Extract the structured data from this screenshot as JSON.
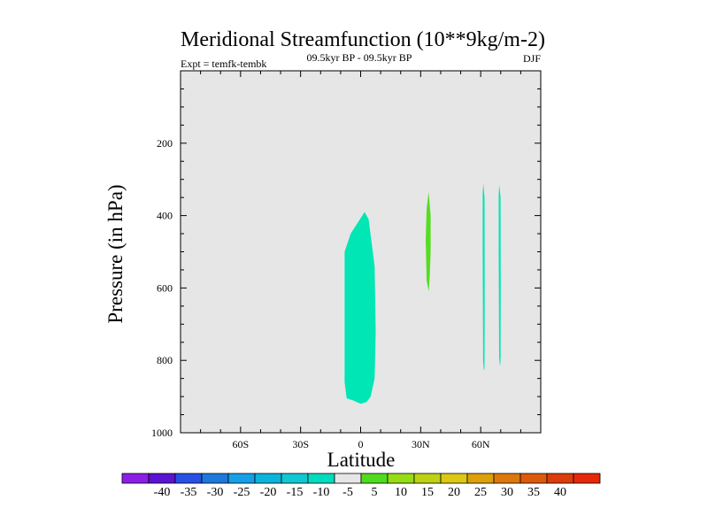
{
  "chart_data": {
    "type": "contour",
    "title": "Meridional Streamfunction (10**9kg/m-2)",
    "subtitle": "09.5kyr BP - 09.5kyr BP",
    "left_label": "Expt = temfk-tembk",
    "right_label": "DJF",
    "xlabel": "Latitude",
    "ylabel": "Pressure (in hPa)",
    "xlim": [
      -90,
      90
    ],
    "ylim": [
      1000,
      0
    ],
    "x_ticks": [
      {
        "value": -60,
        "label": "60S"
      },
      {
        "value": -30,
        "label": "30S"
      },
      {
        "value": 0,
        "label": "0"
      },
      {
        "value": 30,
        "label": "30N"
      },
      {
        "value": 60,
        "label": "60N"
      }
    ],
    "y_ticks": [
      {
        "value": 200,
        "label": "200"
      },
      {
        "value": 400,
        "label": "400"
      },
      {
        "value": 600,
        "label": "600"
      },
      {
        "value": 800,
        "label": "800"
      },
      {
        "value": 1000,
        "label": "1000"
      }
    ],
    "background_color": "#e6e6e6",
    "filled_regions": [
      {
        "name": "negative-cell-equator",
        "level": -5,
        "color": "#00e6b4",
        "points": [
          [
            2,
            390
          ],
          [
            4,
            410
          ],
          [
            7,
            540
          ],
          [
            7.5,
            720
          ],
          [
            7,
            850
          ],
          [
            5,
            900
          ],
          [
            3,
            915
          ],
          [
            0,
            920
          ],
          [
            -4,
            910
          ],
          [
            -7,
            905
          ],
          [
            -8,
            860
          ],
          [
            -8,
            500
          ],
          [
            -5,
            450
          ]
        ]
      },
      {
        "name": "positive-cell-30n",
        "level": 5,
        "color": "#55dd22",
        "points": [
          [
            34,
            335
          ],
          [
            35,
            400
          ],
          [
            35,
            500
          ],
          [
            34.5,
            570
          ],
          [
            34,
            610
          ],
          [
            33,
            580
          ],
          [
            32.5,
            470
          ],
          [
            33,
            380
          ]
        ]
      },
      {
        "name": "negative-sliver-62n",
        "level": -5,
        "color": "#00e6b4",
        "points": [
          [
            61.3,
            310
          ],
          [
            61.9,
            350
          ],
          [
            62,
            600
          ],
          [
            61.9,
            820
          ],
          [
            61.6,
            830
          ],
          [
            61.2,
            800
          ],
          [
            61,
            500
          ],
          [
            61,
            340
          ]
        ]
      },
      {
        "name": "negative-sliver-70n",
        "level": -5,
        "color": "#00e6b4",
        "points": [
          [
            69.3,
            315
          ],
          [
            69.9,
            350
          ],
          [
            70,
            600
          ],
          [
            69.9,
            805
          ],
          [
            69.6,
            815
          ],
          [
            69.2,
            790
          ],
          [
            69,
            500
          ],
          [
            69,
            340
          ]
        ]
      }
    ],
    "colorbar": {
      "colors": [
        "#8c1ee6",
        "#5a14d2",
        "#2850e6",
        "#1e78dc",
        "#14a0e6",
        "#0ab4dc",
        "#10c8d2",
        "#00dcbe",
        "#e6e6e6",
        "#50dc1e",
        "#96dc14",
        "#bed214",
        "#dcc814",
        "#dca00a",
        "#dc780a",
        "#dc5a0a",
        "#dc3c0a",
        "#e6280a"
      ],
      "labels": [
        "-40",
        "-35",
        "-30",
        "-25",
        "-20",
        "-15",
        "-10",
        "-5",
        "5",
        "10",
        "15",
        "20",
        "25",
        "30",
        "35",
        "40"
      ]
    }
  }
}
